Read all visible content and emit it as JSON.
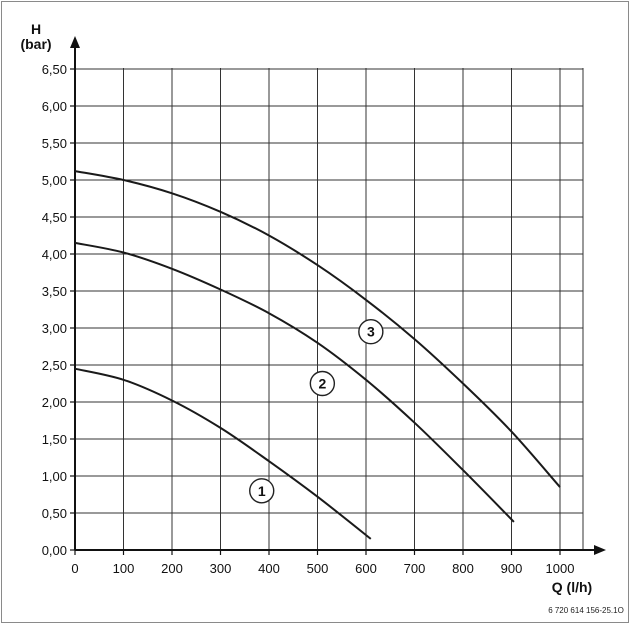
{
  "chart_data": {
    "type": "line",
    "xlabel": "Q (l/h)",
    "ylabel_top": "H",
    "ylabel_bottom": "(bar)",
    "xlim": [
      0,
      1000
    ],
    "ylim": [
      0,
      6.5
    ],
    "x_ticks": [
      "0",
      "100",
      "200",
      "300",
      "400",
      "500",
      "600",
      "700",
      "800",
      "900",
      "1000"
    ],
    "y_ticks": [
      "0,00",
      "0,50",
      "1,00",
      "1,50",
      "2,00",
      "2,50",
      "3,00",
      "3,50",
      "4,00",
      "4,50",
      "5,00",
      "5,50",
      "6,00",
      "6,50"
    ],
    "grid": true,
    "series": [
      {
        "name": "1",
        "label_at": [
          385,
          0.8
        ],
        "x": [
          0,
          100,
          200,
          300,
          400,
          500,
          610
        ],
        "y": [
          2.45,
          2.3,
          2.02,
          1.65,
          1.2,
          0.72,
          0.15
        ]
      },
      {
        "name": "2",
        "label_at": [
          510,
          2.25
        ],
        "x": [
          0,
          100,
          200,
          300,
          400,
          500,
          600,
          700,
          800,
          905
        ],
        "y": [
          4.15,
          4.02,
          3.8,
          3.52,
          3.2,
          2.8,
          2.3,
          1.72,
          1.08,
          0.38
        ]
      },
      {
        "name": "3",
        "label_at": [
          610,
          2.95
        ],
        "x": [
          0,
          100,
          200,
          300,
          400,
          500,
          600,
          700,
          800,
          900,
          1000
        ],
        "y": [
          5.12,
          5.0,
          4.82,
          4.57,
          4.25,
          3.85,
          3.38,
          2.85,
          2.25,
          1.6,
          0.85
        ]
      }
    ]
  },
  "figure_ref": "6 720 614 156-25.1O"
}
